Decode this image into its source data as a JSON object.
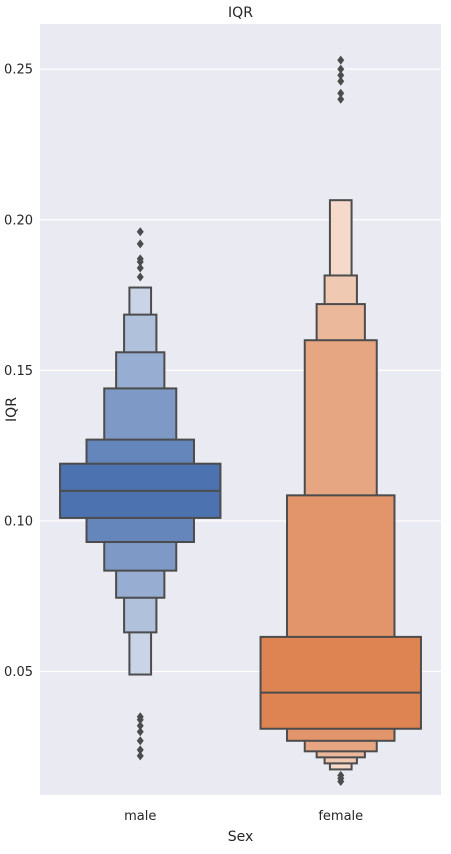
{
  "chart_data": {
    "type": "boxen",
    "title": "IQR",
    "xlabel": "Sex",
    "ylabel": "IQR",
    "ylim": [
      0.009,
      0.265
    ],
    "yticks": [
      0.05,
      0.1,
      0.15,
      0.2,
      0.25
    ],
    "ytick_labels": [
      "0.05",
      "0.10",
      "0.15",
      "0.20",
      "0.25"
    ],
    "grid": true,
    "background": "#eaeaf2",
    "categories": [
      "male",
      "female"
    ],
    "colors": [
      "#4c72b0",
      "#dd8452"
    ],
    "series": [
      {
        "category": "male",
        "median": 0.11,
        "boxes": [
          [
            0.101,
            0.119
          ],
          [
            0.093,
            0.127
          ],
          [
            0.0835,
            0.144
          ],
          [
            0.0745,
            0.156
          ],
          [
            0.063,
            0.1685
          ],
          [
            0.049,
            0.1775
          ]
        ],
        "outliers": [
          0.022,
          0.024,
          0.027,
          0.03,
          0.032,
          0.034,
          0.035,
          0.181,
          0.184,
          0.186,
          0.187,
          0.192,
          0.196
        ]
      },
      {
        "category": "female",
        "median": 0.043,
        "boxes": [
          [
            0.031,
            0.0615
          ],
          [
            0.027,
            0.1085
          ],
          [
            0.0235,
            0.16
          ],
          [
            0.0215,
            0.172
          ],
          [
            0.0195,
            0.1815
          ],
          [
            0.0175,
            0.2065
          ]
        ],
        "outliers": [
          0.0135,
          0.0145,
          0.0155,
          0.24,
          0.242,
          0.246,
          0.248,
          0.25,
          0.253
        ]
      }
    ]
  }
}
